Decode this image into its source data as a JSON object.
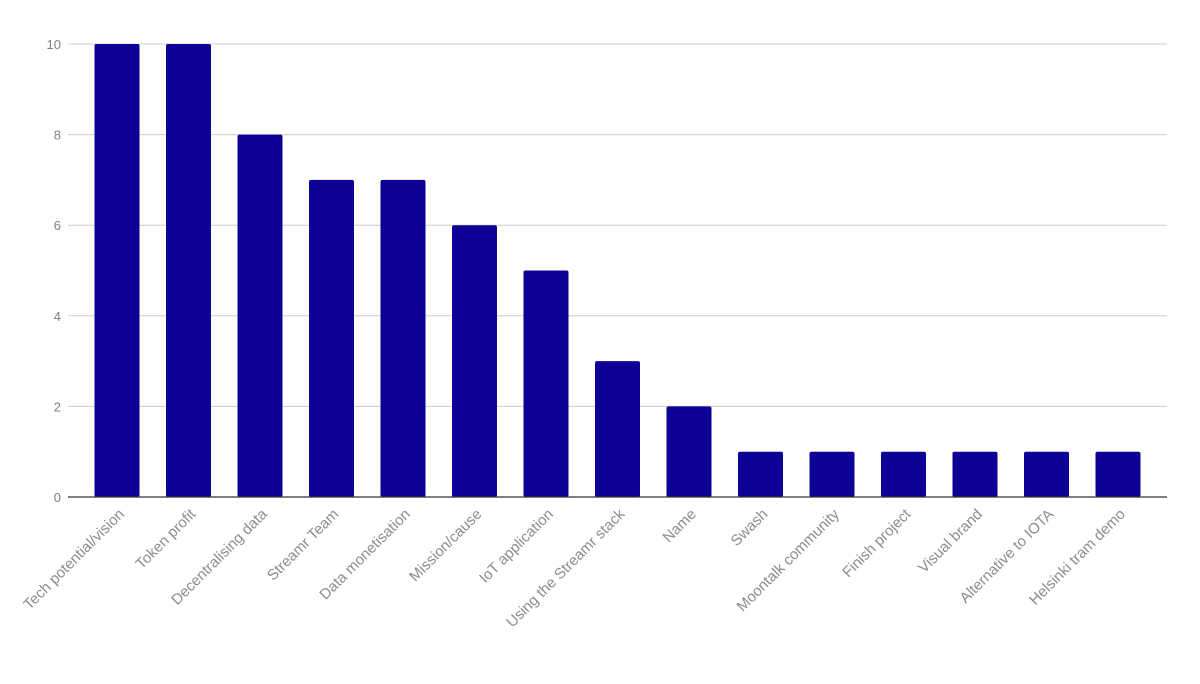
{
  "chart_data": {
    "type": "bar",
    "title": "",
    "xlabel": "",
    "ylabel": "",
    "categories": [
      "Tech potential/vision",
      "Token profit",
      "Decentralising data",
      "Streamr Team",
      "Data monetisation",
      "Mission/cause",
      "IoT application",
      "Using the Streamr stack",
      "Name",
      "Swash",
      "Moontalk community",
      "Finish project",
      "Visual brand",
      "Alternative to IOTA",
      "Helsinki tram demo"
    ],
    "values": [
      10,
      10,
      8,
      7,
      7,
      6,
      5,
      3,
      2,
      1,
      1,
      1,
      1,
      1,
      1
    ],
    "ylim": [
      0,
      10
    ],
    "yticks": [
      0,
      2,
      4,
      6,
      8,
      10
    ],
    "grid": true,
    "legend": "none",
    "bar_color": "#0d0094",
    "grid_color": "#cccccc",
    "axis_color": "#333333",
    "label_color": "#8c8c8c"
  }
}
